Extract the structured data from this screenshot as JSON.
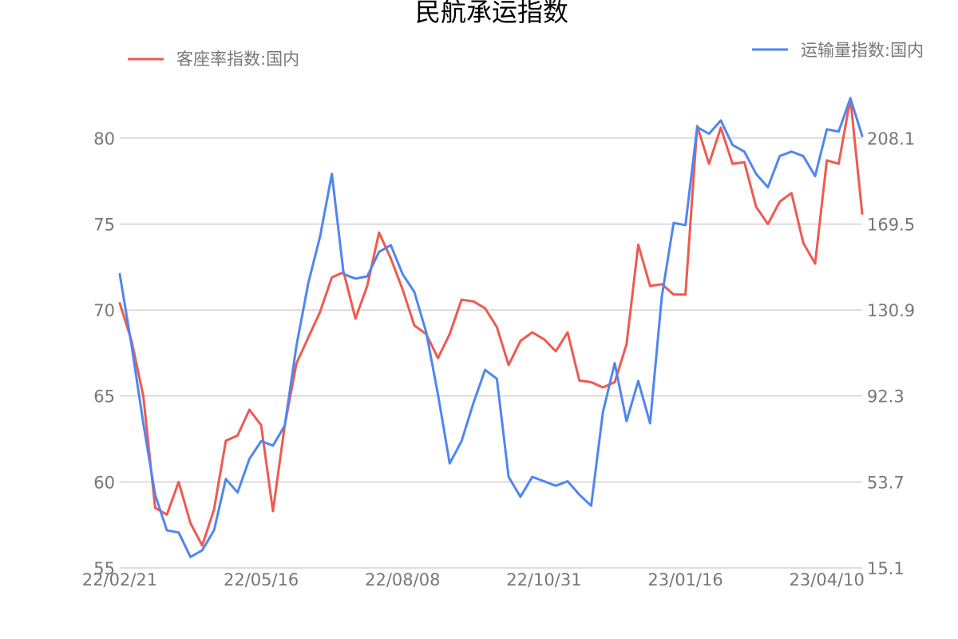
{
  "chart_data": {
    "type": "line",
    "title": "民航承运指数",
    "x_tick_labels": [
      "22/02/21",
      "22/05/16",
      "22/08/08",
      "22/10/31",
      "23/01/16",
      "23/04/10"
    ],
    "x_tick_indices": [
      0,
      12,
      24,
      36,
      48,
      60
    ],
    "y_left": {
      "ylim": [
        55,
        82.5
      ],
      "ticks": [
        "55",
        "60",
        "65",
        "70",
        "75",
        "80"
      ],
      "tick_values": [
        55,
        60,
        65,
        70,
        75,
        80
      ]
    },
    "y_right": {
      "ylim": [
        15.1,
        227.4
      ],
      "ticks": [
        "15.1",
        "53.7",
        "92.3",
        "130.9",
        "169.5",
        "208.1"
      ],
      "tick_values": [
        15.1,
        53.7,
        92.3,
        130.9,
        169.5,
        208.1
      ]
    },
    "grid": true,
    "series": [
      {
        "name": "客座率指数:国内",
        "axis": "left",
        "color": "#ef5a50",
        "values": [
          70.4,
          68.2,
          65.0,
          58.5,
          58.1,
          60.0,
          57.6,
          56.3,
          58.4,
          62.4,
          62.7,
          64.2,
          63.3,
          58.3,
          63.3,
          66.9,
          68.4,
          69.9,
          71.9,
          72.2,
          69.5,
          71.4,
          74.5,
          73.0,
          71.2,
          69.1,
          68.6,
          67.2,
          68.6,
          70.6,
          70.5,
          70.1,
          69.0,
          66.8,
          68.2,
          68.7,
          68.3,
          67.6,
          68.7,
          65.9,
          65.8,
          65.5,
          65.8,
          68.0,
          73.8,
          71.4,
          71.5,
          70.9,
          70.9,
          80.7,
          78.5,
          80.6,
          78.5,
          78.6,
          76.0,
          75.0,
          76.3,
          76.8,
          73.9,
          72.7,
          78.7,
          78.5,
          82.3,
          75.6
        ]
      },
      {
        "name": "运输量指数:国内",
        "axis": "right",
        "color": "#4f86f1",
        "values": [
          147,
          115,
          80,
          48,
          32,
          31,
          20,
          23,
          32,
          55,
          49,
          64,
          72,
          70,
          79,
          115,
          143,
          164,
          192,
          147,
          145,
          146,
          157,
          160,
          147,
          139,
          121,
          93,
          62,
          72,
          89,
          104,
          100,
          56,
          47,
          56,
          54,
          52,
          54,
          48,
          43,
          85,
          107,
          81,
          99,
          80,
          137,
          170,
          169,
          213,
          210,
          216,
          205,
          202,
          192,
          186,
          200,
          202,
          200,
          191,
          212,
          211,
          226,
          209
        ]
      }
    ]
  }
}
